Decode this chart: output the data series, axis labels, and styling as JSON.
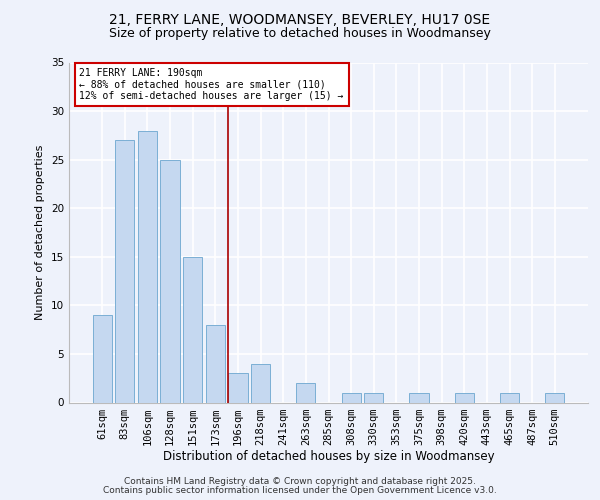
{
  "title1": "21, FERRY LANE, WOODMANSEY, BEVERLEY, HU17 0SE",
  "title2": "Size of property relative to detached houses in Woodmansey",
  "xlabel": "Distribution of detached houses by size in Woodmansey",
  "ylabel": "Number of detached properties",
  "categories": [
    "61sqm",
    "83sqm",
    "106sqm",
    "128sqm",
    "151sqm",
    "173sqm",
    "196sqm",
    "218sqm",
    "241sqm",
    "263sqm",
    "285sqm",
    "308sqm",
    "330sqm",
    "353sqm",
    "375sqm",
    "398sqm",
    "420sqm",
    "443sqm",
    "465sqm",
    "487sqm",
    "510sqm"
  ],
  "values": [
    9,
    27,
    28,
    25,
    15,
    8,
    3,
    4,
    0,
    2,
    0,
    1,
    1,
    0,
    1,
    0,
    1,
    0,
    1,
    0,
    1
  ],
  "bar_color": "#c5d8f0",
  "bar_edge_color": "#7bafd4",
  "vline_color": "#aa0000",
  "vline_x_index": 6,
  "annotation_text": "21 FERRY LANE: 190sqm\n← 88% of detached houses are smaller (110)\n12% of semi-detached houses are larger (15) →",
  "annotation_box_color": "white",
  "annotation_box_edge": "#cc0000",
  "ylim": [
    0,
    35
  ],
  "yticks": [
    0,
    5,
    10,
    15,
    20,
    25,
    30,
    35
  ],
  "footer1": "Contains HM Land Registry data © Crown copyright and database right 2025.",
  "footer2": "Contains public sector information licensed under the Open Government Licence v3.0.",
  "background_color": "#eef2fb",
  "grid_color": "white",
  "title1_fontsize": 10,
  "title2_fontsize": 9,
  "xlabel_fontsize": 8.5,
  "ylabel_fontsize": 8,
  "tick_fontsize": 7.5,
  "annotation_fontsize": 7,
  "footer_fontsize": 6.5
}
